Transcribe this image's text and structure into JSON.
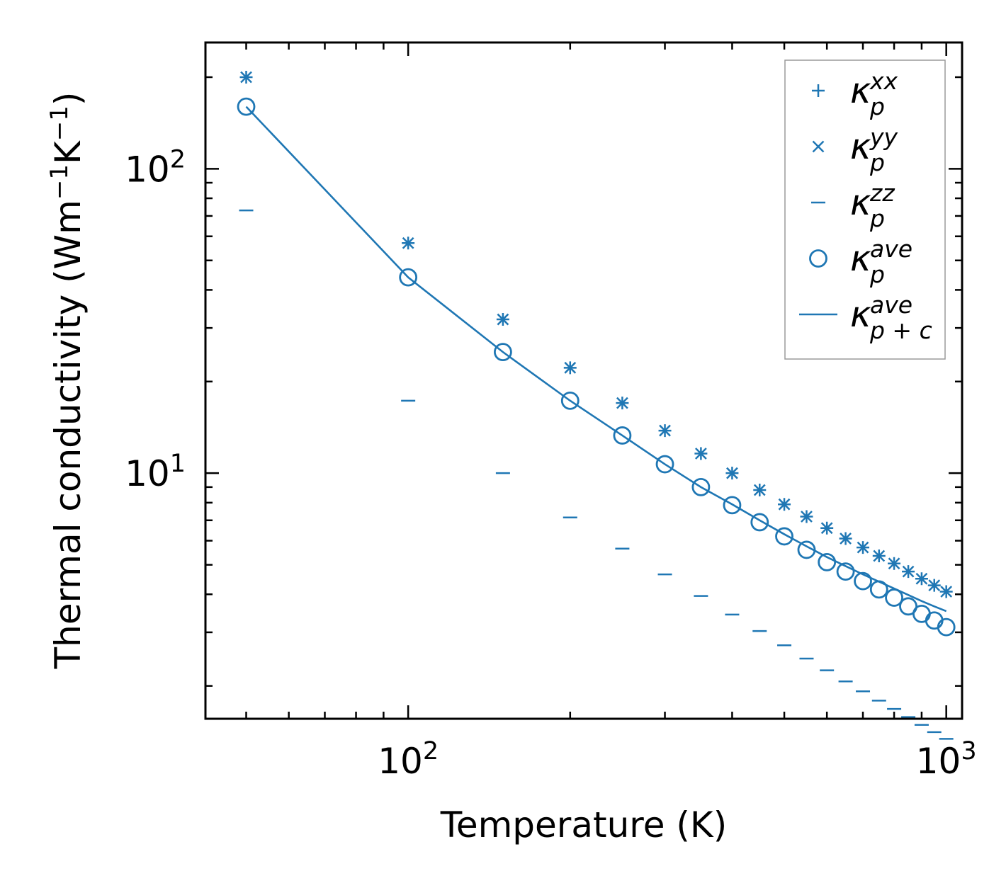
{
  "chart_data": {
    "type": "scatter",
    "xscale": "log",
    "yscale": "log",
    "xlim": [
      42,
      1070
    ],
    "ylim": [
      1.56,
      260
    ],
    "xlabel": "Temperature (K)",
    "ylabel": {
      "main": "Thermal conductivity (Wm",
      "sup1": "−1",
      "mid": "K",
      "sup2": "−1",
      "end": ")"
    },
    "x_ticks": [
      {
        "value": 100,
        "base": "10",
        "exp": "2"
      },
      {
        "value": 1000,
        "base": "10",
        "exp": "3"
      }
    ],
    "y_ticks": [
      {
        "value": 10,
        "base": "10",
        "exp": "1"
      },
      {
        "value": 100,
        "base": "10",
        "exp": "2"
      }
    ],
    "color": "#1f77b4",
    "x": [
      50,
      100,
      150,
      200,
      250,
      300,
      350,
      400,
      450,
      500,
      550,
      600,
      650,
      700,
      750,
      800,
      850,
      900,
      950,
      1000
    ],
    "series": [
      {
        "name": "kappa_p_xx",
        "marker": "plus",
        "values": [
          200,
          57,
          32,
          22.2,
          17,
          13.8,
          11.6,
          10.0,
          8.8,
          7.9,
          7.2,
          6.6,
          6.1,
          5.7,
          5.35,
          5.05,
          4.75,
          4.5,
          4.28,
          4.08
        ]
      },
      {
        "name": "kappa_p_yy",
        "marker": "x",
        "values": [
          200,
          57,
          32,
          22.2,
          17,
          13.8,
          11.6,
          10.0,
          8.8,
          7.9,
          7.2,
          6.6,
          6.1,
          5.7,
          5.35,
          5.05,
          4.75,
          4.5,
          4.28,
          4.08
        ]
      },
      {
        "name": "kappa_p_zz",
        "marker": "hline",
        "values": [
          73,
          17.3,
          10.0,
          7.15,
          5.65,
          4.65,
          3.95,
          3.43,
          3.03,
          2.72,
          2.46,
          2.25,
          2.07,
          1.92,
          1.79,
          1.68,
          1.58,
          1.49,
          1.41,
          1.34
        ]
      },
      {
        "name": "kappa_p_ave",
        "marker": "circle",
        "values": [
          160,
          44,
          25,
          17.3,
          13.3,
          10.7,
          9.0,
          7.85,
          6.9,
          6.2,
          5.6,
          5.1,
          4.75,
          4.42,
          4.15,
          3.9,
          3.65,
          3.45,
          3.28,
          3.12
        ]
      },
      {
        "name": "kappa_pc_ave",
        "marker": "line",
        "values": [
          160,
          44,
          25,
          17.3,
          13.3,
          10.7,
          9.0,
          7.9,
          7.0,
          6.3,
          5.75,
          5.3,
          4.95,
          4.65,
          4.4,
          4.18,
          3.98,
          3.8,
          3.65,
          3.52
        ]
      }
    ],
    "legend": {
      "position": "top-right",
      "entries": [
        {
          "marker": "plus",
          "base": "κ",
          "sub": "p",
          "sup": "xx"
        },
        {
          "marker": "x",
          "base": "κ",
          "sub": "p",
          "sup": "yy"
        },
        {
          "marker": "hline",
          "base": "κ",
          "sub": "p",
          "sup": "zz"
        },
        {
          "marker": "circle",
          "base": "κ",
          "sub": "p",
          "sup": "ave"
        },
        {
          "marker": "line",
          "base": "κ",
          "sub": "p + c",
          "sup": "ave"
        }
      ]
    }
  }
}
